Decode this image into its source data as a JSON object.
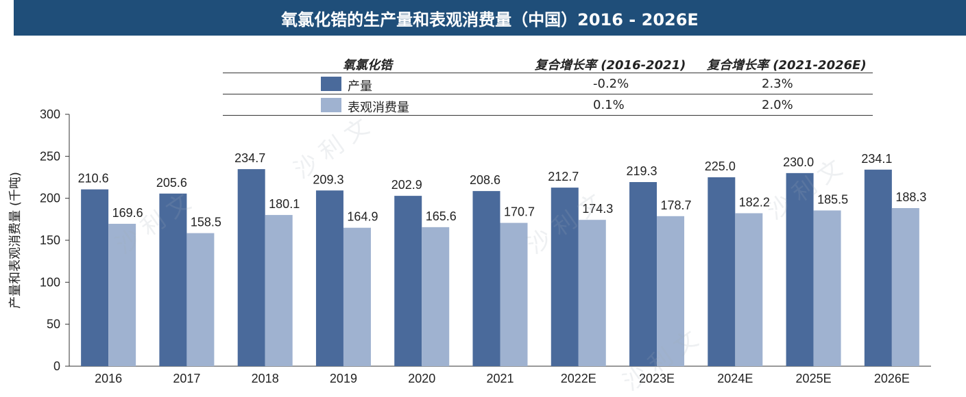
{
  "header": {
    "title": "氧氯化锆的生产量和表观消费量（中国）2016 - 2026E"
  },
  "cagr_table": {
    "col0": "氧氯化锆",
    "col1": "复合增长率 (2016-2021)",
    "col2": "复合增长率 (2021-2026E)",
    "rows": [
      {
        "label": "产量",
        "v1": "-0.2%",
        "v2": "2.3%"
      },
      {
        "label": "表观消费量",
        "v1": "0.1%",
        "v2": "2.0%"
      }
    ]
  },
  "watermark": "沙 利 文",
  "chart_data": {
    "type": "bar",
    "ylabel": "产量和表观消费量 (千吨)",
    "ylim": [
      0,
      300
    ],
    "yticks": [
      0,
      50,
      100,
      150,
      200,
      250,
      300
    ],
    "categories": [
      "2016",
      "2017",
      "2018",
      "2019",
      "2020",
      "2021",
      "2022E",
      "2023E",
      "2024E",
      "2025E",
      "2026E"
    ],
    "series": [
      {
        "name": "产量",
        "color": "#4a6a9b",
        "values": [
          210.6,
          205.6,
          234.7,
          209.3,
          202.9,
          208.6,
          212.7,
          219.3,
          225.0,
          230.0,
          234.1
        ]
      },
      {
        "name": "表观消费量",
        "color": "#9fb2d0",
        "values": [
          169.6,
          158.5,
          180.1,
          164.9,
          165.6,
          170.7,
          174.3,
          178.7,
          182.2,
          185.5,
          188.3
        ]
      }
    ],
    "grid": false,
    "legend": "top"
  }
}
